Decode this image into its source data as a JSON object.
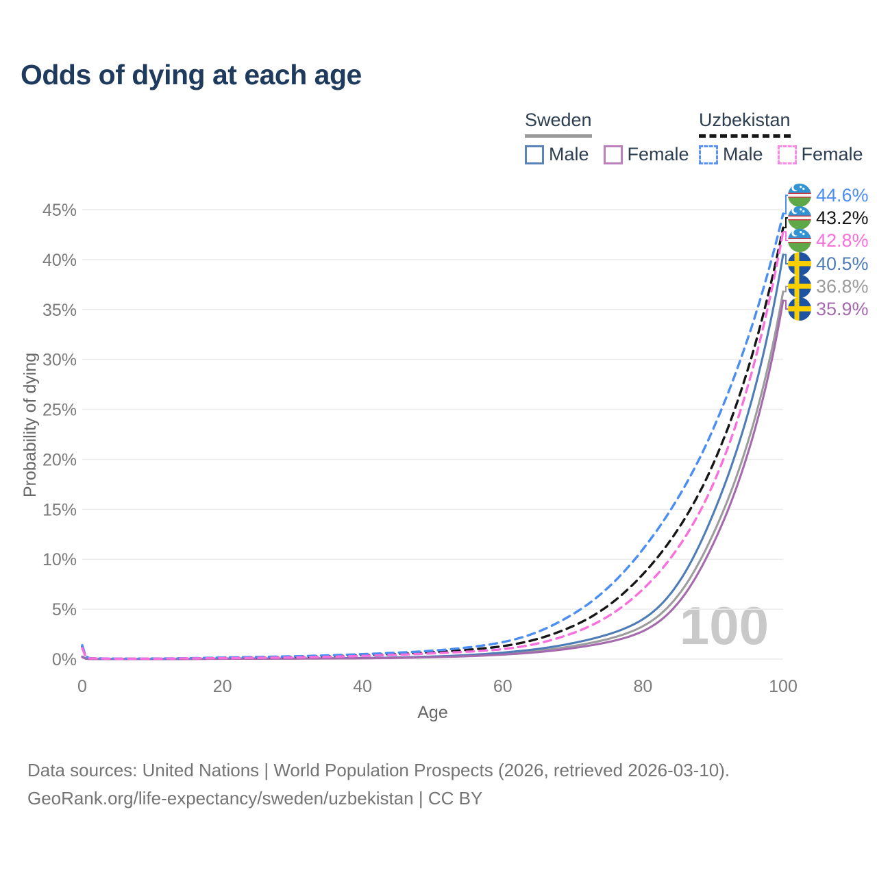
{
  "title": "Odds of dying at each age",
  "watermark_age": "100",
  "legend": {
    "groups": [
      {
        "name": "Sweden",
        "line_style": "solid",
        "color": "#9a9a9a",
        "items": [
          {
            "label": "Male",
            "color": "#5b83b8",
            "style": "solid"
          },
          {
            "label": "Female",
            "color": "#bd80be",
            "style": "solid"
          }
        ]
      },
      {
        "name": "Uzbekistan",
        "line_style": "dashed",
        "color": "#161616",
        "items": [
          {
            "label": "Male",
            "color": "#5a93f5",
            "style": "dashed"
          },
          {
            "label": "Female",
            "color": "#fb8ae8",
            "style": "dashed"
          }
        ]
      }
    ]
  },
  "chart_data": {
    "type": "line",
    "title": "Odds of dying at each age",
    "xlabel": "Age",
    "ylabel": "Probability of dying",
    "xlim": [
      0,
      100
    ],
    "ylim": [
      0,
      45
    ],
    "x_ticks": [
      "0",
      "20",
      "40",
      "60",
      "80",
      "100"
    ],
    "y_ticks": [
      "0%",
      "5%",
      "10%",
      "15%",
      "20%",
      "25%",
      "30%",
      "35%",
      "40%",
      "45%"
    ],
    "grid": "horizontal",
    "legend_position": "top-right",
    "x": [
      0,
      1,
      10,
      20,
      30,
      40,
      50,
      60,
      70,
      80,
      90,
      100
    ],
    "series": [
      {
        "name": "Uzbekistan Male",
        "country": "Uzbekistan",
        "sex": "Male",
        "flag": "uzbekistan",
        "color": "#4b8ef2",
        "dash": true,
        "end_label": "44.6%",
        "end_value": 44.6,
        "values": [
          1.4,
          0.1,
          0.06,
          0.16,
          0.28,
          0.5,
          0.85,
          1.7,
          4.5,
          11.0,
          23.0,
          44.6
        ]
      },
      {
        "name": "Uzbekistan Both sexes",
        "country": "Uzbekistan",
        "sex": "Both",
        "flag": "uzbekistan",
        "color": "#161616",
        "dash": true,
        "end_label": "43.2%",
        "end_value": 43.2,
        "values": [
          1.25,
          0.09,
          0.05,
          0.13,
          0.22,
          0.4,
          0.7,
          1.3,
          3.3,
          8.5,
          19.5,
          43.2
        ]
      },
      {
        "name": "Uzbekistan Female",
        "country": "Uzbekistan",
        "sex": "Female",
        "flag": "uzbekistan",
        "color": "#f970dd",
        "dash": true,
        "end_label": "42.8%",
        "end_value": 42.8,
        "values": [
          1.1,
          0.08,
          0.05,
          0.1,
          0.17,
          0.32,
          0.58,
          1.0,
          2.6,
          7.0,
          17.5,
          42.8
        ]
      },
      {
        "name": "Sweden Male",
        "country": "Sweden",
        "sex": "Male",
        "flag": "sweden",
        "color": "#4e7cb6",
        "dash": false,
        "end_label": "40.5%",
        "end_value": 40.5,
        "values": [
          0.25,
          0.02,
          0.012,
          0.05,
          0.07,
          0.11,
          0.26,
          0.65,
          1.6,
          4.0,
          14.5,
          40.5
        ]
      },
      {
        "name": "Sweden Both sexes",
        "country": "Sweden",
        "sex": "Both",
        "flag": "sweden",
        "color": "#9c9c9c",
        "dash": false,
        "end_label": "36.8%",
        "end_value": 36.8,
        "values": [
          0.22,
          0.02,
          0.01,
          0.04,
          0.06,
          0.09,
          0.22,
          0.55,
          1.3,
          3.3,
          12.5,
          36.8
        ]
      },
      {
        "name": "Sweden Female",
        "country": "Sweden",
        "sex": "Female",
        "flag": "sweden",
        "color": "#a56aae",
        "dash": false,
        "end_label": "35.9%",
        "end_value": 35.9,
        "values": [
          0.2,
          0.02,
          0.01,
          0.03,
          0.05,
          0.08,
          0.19,
          0.45,
          1.1,
          2.8,
          11.5,
          35.9
        ]
      }
    ]
  },
  "footer": {
    "line1": "Data sources: United Nations | World Population Prospects (2026, retrieved 2026-03-10).",
    "line2": "GeoRank.org/life-expectancy/sweden/uzbekistan | CC BY"
  }
}
